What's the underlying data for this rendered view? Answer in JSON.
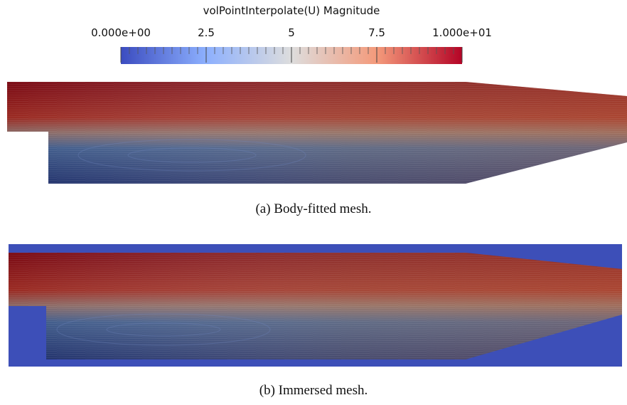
{
  "colorbar": {
    "title": "volPointInterpolate(U) Magnitude",
    "range": [
      0,
      10
    ],
    "ticks": [
      {
        "value": 0,
        "label": "0.000e+00"
      },
      2.5,
      5,
      7.5,
      {
        "value": 10,
        "label": "1.000e+01"
      }
    ],
    "colormap": [
      "#3b4cc0",
      "#8db0fe",
      "#dddddd",
      "#f49a7b",
      "#b40426"
    ]
  },
  "panels": [
    {
      "caption": "(a) Body-fitted mesh."
    },
    {
      "caption": "(b) Immersed mesh."
    }
  ]
}
